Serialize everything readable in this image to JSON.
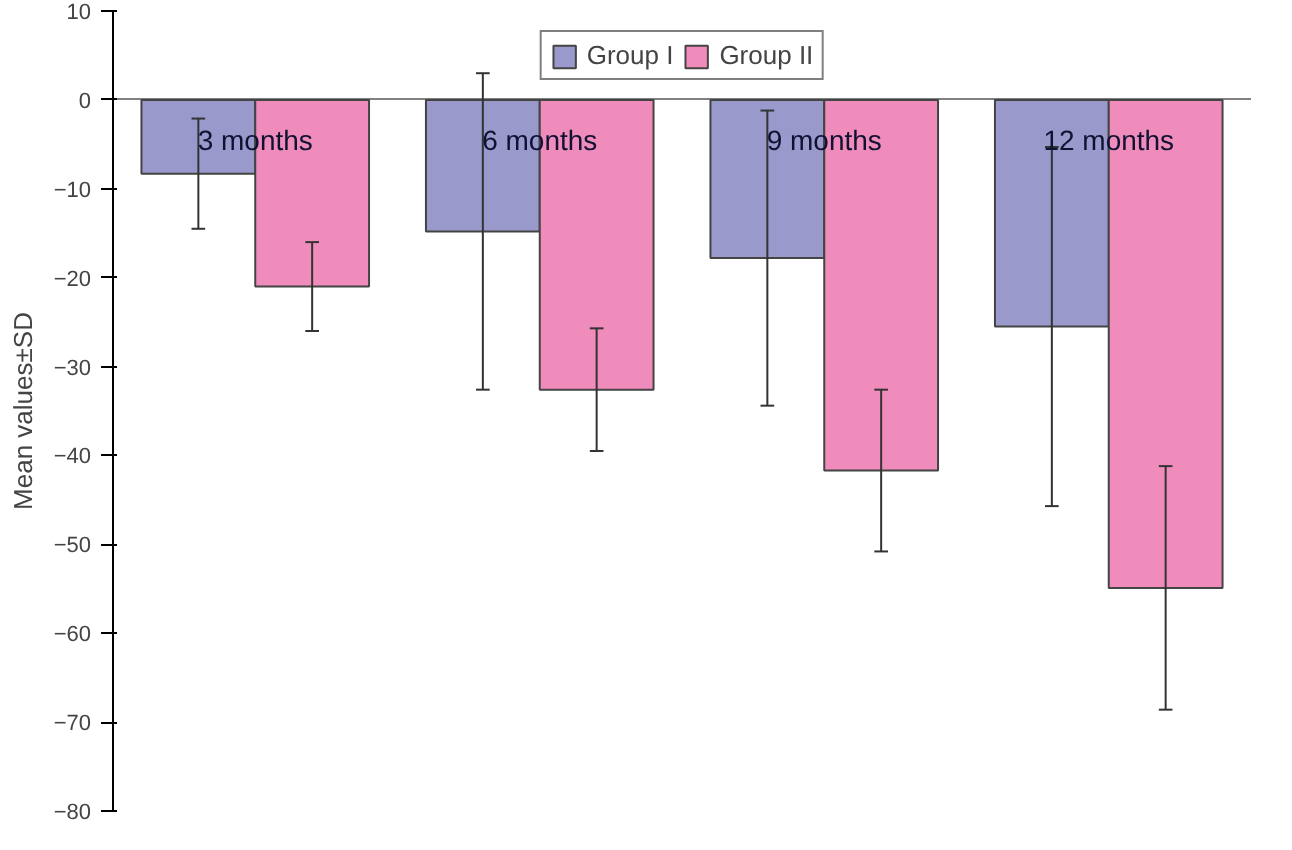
{
  "chart_data": {
    "type": "bar",
    "ylabel": "Mean values±SD",
    "categories": [
      "3 months",
      "6 months",
      "9 months",
      "12 months"
    ],
    "series": [
      {
        "name": "Group I",
        "color": "#9999cc",
        "values": [
          -8.3,
          -14.8,
          -17.8,
          -25.5
        ],
        "errors": [
          6.2,
          17.8,
          16.6,
          20.2
        ]
      },
      {
        "name": "Group II",
        "color": "#f08cbc",
        "values": [
          -21,
          -32.6,
          -41.7,
          -54.9
        ],
        "errors": [
          5,
          6.9,
          9.1,
          13.7
        ]
      }
    ],
    "ylim": [
      -80,
      10
    ],
    "yticks": [
      -80,
      -70,
      -60,
      -50,
      -40,
      -30,
      -20,
      -10,
      0,
      10
    ],
    "grid": false,
    "legend": "top"
  }
}
